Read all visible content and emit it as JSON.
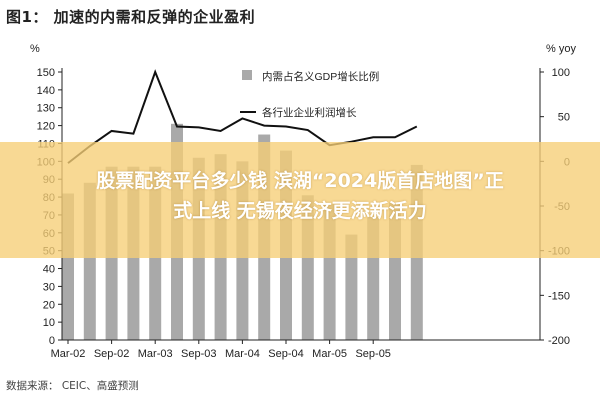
{
  "figure_title": "图1： 加速的内需和反弹的企业盈利",
  "source_note": "数据来源： CEIC、高盛预测",
  "overlay": {
    "headline_line1": "股票配资平台多少钱 滨湖“2024版首店地图”正",
    "headline_line2": "式上线  无锡夜经济更添新活力"
  },
  "chart_data": {
    "type": "bar",
    "title": "",
    "left_axis_unit": "%",
    "right_axis_unit": "% yoy",
    "ylim_left": [
      0,
      150
    ],
    "ylim_right": [
      -200,
      100
    ],
    "left_ticks": [
      0,
      10,
      20,
      30,
      40,
      50,
      60,
      70,
      80,
      90,
      100,
      110,
      120,
      130,
      140,
      150
    ],
    "right_ticks": [
      -200,
      -150,
      -100,
      -50,
      0,
      50,
      100
    ],
    "x_tick_labels": [
      "Mar-02",
      "Sep-02",
      "Mar-03",
      "Sep-03",
      "Mar-04",
      "Sep-04",
      "Mar-05",
      "Sep-05"
    ],
    "grid": false,
    "legend_placement": "top-center",
    "bar_color": "#a9a9a9",
    "line_color": "#111111",
    "series": [
      {
        "name": "内需占名义GDP增长比例",
        "axis": "left",
        "kind": "bar",
        "values": [
          82,
          88,
          97,
          97,
          97,
          121,
          102,
          104,
          100,
          115,
          106,
          81,
          76,
          59,
          69,
          77,
          98
        ]
      },
      {
        "name": "各行业企业利润增长",
        "axis": "right",
        "kind": "line",
        "values": [
          -2,
          17,
          34,
          31,
          100,
          39,
          38,
          34,
          48,
          40,
          39,
          35,
          18,
          22,
          27,
          27,
          39
        ]
      }
    ]
  }
}
